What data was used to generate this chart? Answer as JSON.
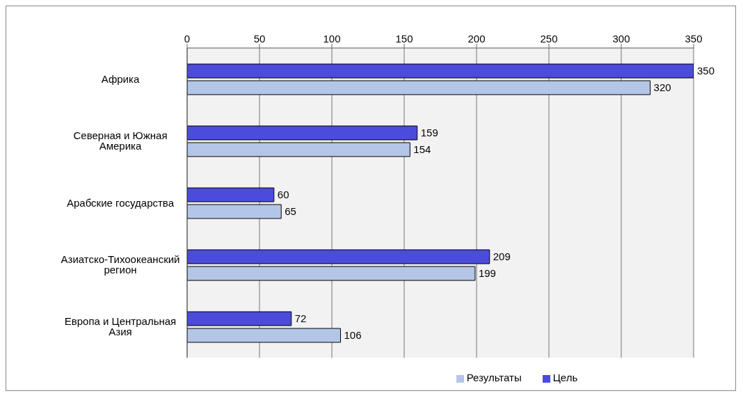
{
  "chart_data": {
    "type": "bar",
    "orientation": "horizontal",
    "categories": [
      "Африка",
      "Северная и Южная Америка",
      "Арабские государства",
      "Азиатско-Тихоокеанский регион",
      "Европа и Центральная Азия"
    ],
    "series": [
      {
        "name": "Цель",
        "color": "#4b4bdc",
        "values": [
          350,
          159,
          60,
          209,
          72
        ]
      },
      {
        "name": "Результаты",
        "color": "#b4c6e7",
        "values": [
          320,
          154,
          65,
          199,
          106
        ]
      }
    ],
    "xlim": [
      0,
      350
    ],
    "xticks": [
      0,
      50,
      100,
      150,
      200,
      250,
      300,
      350
    ],
    "grid": "x",
    "legend": "bottom",
    "data_labels": true
  }
}
